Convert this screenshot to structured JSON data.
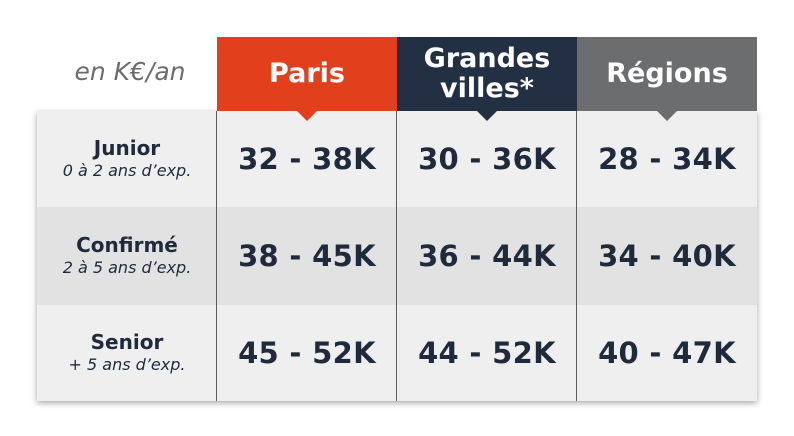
{
  "unit_label": "en K€/an",
  "colors": {
    "paris": "#e2401c",
    "grandes_villes": "#233044",
    "regions": "#6b6d6e",
    "text": "#1f2a3c"
  },
  "columns": [
    {
      "label_line1": "Paris",
      "label_line2": ""
    },
    {
      "label_line1": "Grandes",
      "label_line2": "villes*"
    },
    {
      "label_line1": "Régions",
      "label_line2": ""
    }
  ],
  "rows": [
    {
      "level": "Junior",
      "experience": "0 à 2 ans d’exp.",
      "values": [
        "32 - 38K",
        "30 - 36K",
        "28 - 34K"
      ]
    },
    {
      "level": "Confirmé",
      "experience": "2 à 5 ans d’exp.",
      "values": [
        "38 - 45K",
        "36 - 44K",
        "34 - 40K"
      ]
    },
    {
      "level": "Senior",
      "experience": "+ 5 ans d’exp.",
      "values": [
        "45 - 52K",
        "44 - 52K",
        "40 - 47K"
      ]
    }
  ]
}
